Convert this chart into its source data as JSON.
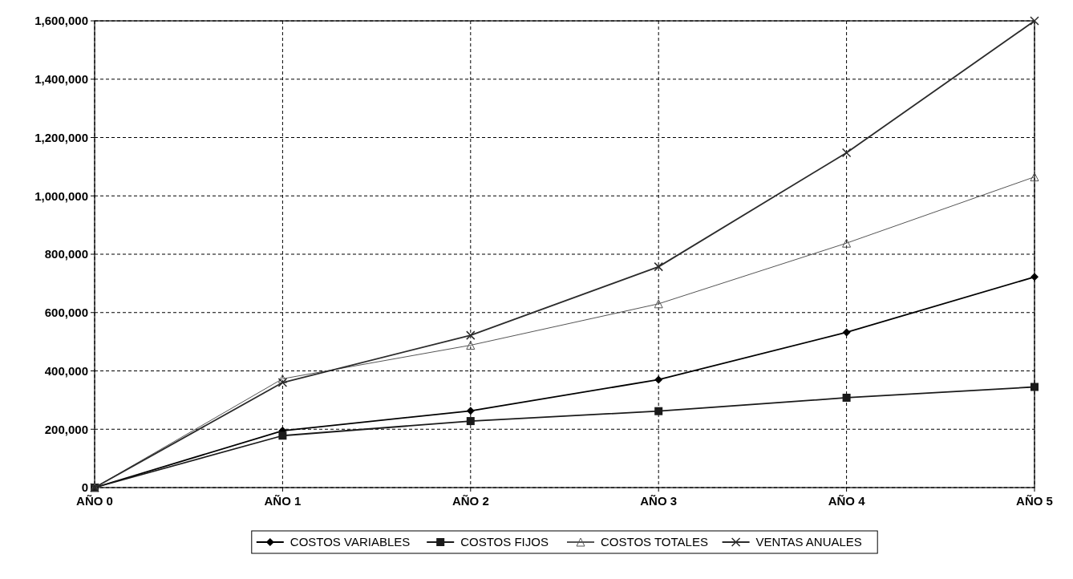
{
  "chart_data": {
    "type": "line",
    "categories": [
      "AÑO 0",
      "AÑO 1",
      "AÑO 2",
      "AÑO 3",
      "AÑO 4",
      "AÑO 5"
    ],
    "series": [
      {
        "name": "COSTOS VARIABLES",
        "color": "#000000",
        "marker": "diamond",
        "values": [
          0,
          195000,
          263000,
          370000,
          532000,
          722000
        ]
      },
      {
        "name": "COSTOS FIJOS",
        "color": "#1a1a1a",
        "marker": "square",
        "values": [
          0,
          178000,
          228000,
          262000,
          308000,
          345000
        ]
      },
      {
        "name": "COSTOS TOTALES",
        "color": "#555555",
        "marker": "triangle",
        "values": [
          0,
          373000,
          488000,
          630000,
          838000,
          1065000
        ]
      },
      {
        "name": "VENTAS ANUALES",
        "color": "#2b2b2b",
        "marker": "cross",
        "values": [
          0,
          360000,
          522000,
          757000,
          1148000,
          1600000
        ]
      }
    ],
    "ylim": [
      0,
      1600000
    ],
    "yticks": [
      0,
      {
        "value": 200000,
        "label": "200,000"
      },
      {
        "value": 400000,
        "label": "400,000"
      },
      {
        "value": 600000,
        "label": "600,000"
      },
      {
        "value": 800000,
        "label": "800,000"
      },
      {
        "value": 1000000,
        "label": "1,000,000"
      },
      {
        "value": 1200000,
        "label": "1,200,000"
      },
      {
        "value": 1400000,
        "label": "1,400,000"
      },
      {
        "value": 1600000,
        "label": "1,600,000"
      }
    ],
    "grid": true,
    "legend": "bottom",
    "line_style": "solid"
  }
}
